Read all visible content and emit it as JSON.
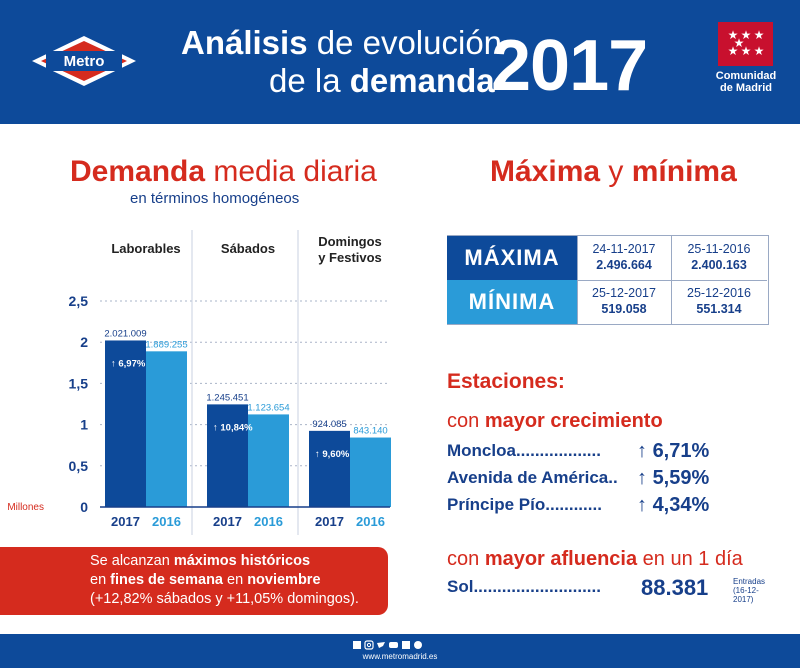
{
  "header": {
    "title_bold1": "Análisis",
    "title_rest1": " de evolución",
    "title_line2a": "de la ",
    "title_bold2": "demanda",
    "year": "2017",
    "logo_text": "Metro",
    "region_line1": "Comunidad",
    "region_line2": "de Madrid"
  },
  "demand": {
    "title_bold": "Demanda",
    "title_rest": " media diaria",
    "subtitle": "en términos homogéneos"
  },
  "chart_data": {
    "type": "bar",
    "categories": [
      "Laborables",
      "Sábados",
      "Domingos y Festivos"
    ],
    "category_lines": [
      [
        "Laborables"
      ],
      [
        "Sábados"
      ],
      [
        "Domingos",
        "y Festivos"
      ]
    ],
    "series": [
      {
        "name": "2017",
        "values": [
          2.021009,
          1.245451,
          0.924085
        ],
        "labels": [
          "2.021.009",
          "1.245.451",
          "924.085"
        ],
        "color": "#0d4a9a"
      },
      {
        "name": "2016",
        "values": [
          1.889255,
          1.123654,
          0.84314
        ],
        "labels": [
          "1.889.255",
          "1.123.654",
          "843.140"
        ],
        "color": "#2a9bd8"
      }
    ],
    "growth_labels": [
      "6,97%",
      "10,84%",
      "9,60%"
    ],
    "yticks": [
      "0",
      "0,5",
      "1",
      "1,5",
      "2",
      "2,5"
    ],
    "ytick_values": [
      0,
      0.5,
      1,
      1.5,
      2,
      2.5
    ],
    "ylabel": "Millones",
    "ylim": [
      0,
      2.5
    ]
  },
  "banner": {
    "l1a": "Se alcanzan ",
    "l1b": "máximos históricos",
    "l2a": "en ",
    "l2b": "fines de semana",
    "l2c": " en ",
    "l2d": "noviembre",
    "l3": "(+12,82% sábados y +11,05% domingos)."
  },
  "maxmin": {
    "title_bold1": "Máxima",
    "title_mid": " y ",
    "title_bold2": "mínima",
    "max_label": "MÁXIMA",
    "min_label": "MÍNIMA",
    "max": [
      {
        "date": "24-11-2017",
        "value": "2.496.664"
      },
      {
        "date": "25-11-2016",
        "value": "2.400.163"
      }
    ],
    "min": [
      {
        "date": "25-12-2017",
        "value": "519.058"
      },
      {
        "date": "25-12-2016",
        "value": "551.314"
      }
    ]
  },
  "stations": {
    "title": "Estaciones:",
    "growth_title_a": "con ",
    "growth_title_b": "mayor crecimiento",
    "growth": [
      {
        "name": "Moncloa..................",
        "value": "6,71%"
      },
      {
        "name": "Avenida de América..",
        "value": "5,59%"
      },
      {
        "name": "Príncipe Pío............",
        "value": "4,34%"
      }
    ],
    "afl_title_a": "con ",
    "afl_title_b": "mayor afluencia",
    "afl_title_c": " en un 1 día",
    "sol_name": "Sol...........................",
    "sol_value": "88.381",
    "sol_unit": "Entradas",
    "sol_date": "(16-12-2017)"
  },
  "footer": {
    "url": "www.metromadrid.es"
  },
  "colors": {
    "primary": "#0d4a9a",
    "light": "#2a9bd8",
    "accent": "#d52b1e"
  }
}
